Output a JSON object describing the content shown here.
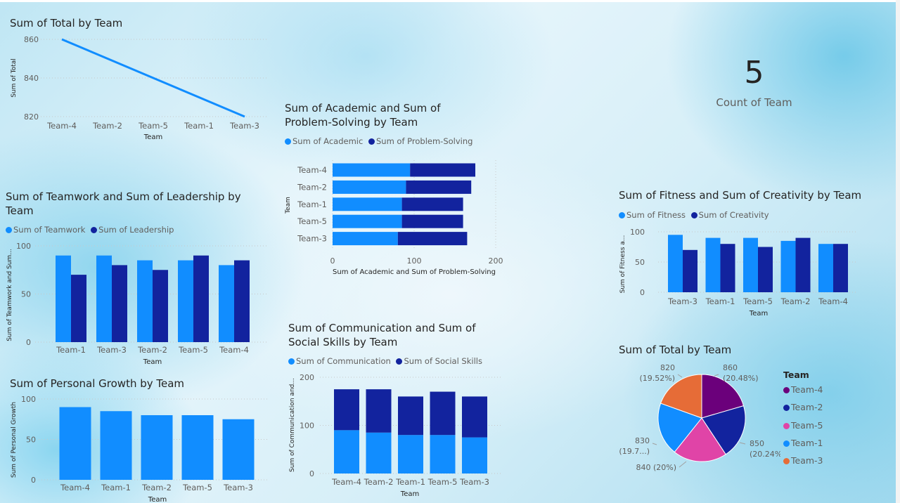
{
  "colors": {
    "light_blue": "#118DFF",
    "dark_blue": "#12239E",
    "pie": [
      "#6B007B",
      "#12239E",
      "#E044A7",
      "#118DFF",
      "#E66C37"
    ]
  },
  "kpi": {
    "value": "5",
    "label": "Count of Team"
  },
  "chart_data": [
    {
      "id": "total_line",
      "type": "line",
      "title": "Sum of Total by Team",
      "xlabel": "Team",
      "ylabel": "Sum of Total",
      "categories": [
        "Team-4",
        "Team-2",
        "Team-5",
        "Team-1",
        "Team-3"
      ],
      "values": [
        860,
        850,
        840,
        830,
        820
      ],
      "yticks": [
        "860",
        "840",
        "820"
      ],
      "ylim": [
        820,
        860
      ],
      "grid": true
    },
    {
      "id": "teamwork_leadership",
      "type": "bar",
      "title": "Sum of Teamwork and Sum of Leadership by Team",
      "xlabel": "Team",
      "ylabel": "Sum of Teamwork and Sum...",
      "categories": [
        "Team-1",
        "Team-3",
        "Team-2",
        "Team-5",
        "Team-4"
      ],
      "series": [
        {
          "name": "Sum of Teamwork",
          "values": [
            90,
            90,
            85,
            85,
            80
          ]
        },
        {
          "name": "Sum of Leadership",
          "values": [
            70,
            80,
            75,
            90,
            85
          ]
        }
      ],
      "yticks": [
        "100",
        "50",
        "0"
      ],
      "ylim": [
        0,
        100
      ],
      "legend": "top-left"
    },
    {
      "id": "personal_growth",
      "type": "bar",
      "title": "Sum of Personal Growth by Team",
      "xlabel": "Team",
      "ylabel": "Sum of Personal Growth",
      "categories": [
        "Team-4",
        "Team-1",
        "Team-2",
        "Team-5",
        "Team-3"
      ],
      "values": [
        90,
        85,
        80,
        80,
        75
      ],
      "yticks": [
        "100",
        "50",
        "0"
      ],
      "ylim": [
        0,
        100
      ]
    },
    {
      "id": "academic_problem",
      "type": "bar",
      "orientation": "horizontal",
      "stacked": true,
      "title": "Sum of Academic and Sum of Problem-Solving by Team",
      "xlabel": "Sum of Academic and Sum of Problem-Solving",
      "ylabel": "Team",
      "categories": [
        "Team-4",
        "Team-2",
        "Team-1",
        "Team-5",
        "Team-3"
      ],
      "series": [
        {
          "name": "Sum of Academic",
          "values": [
            95,
            90,
            85,
            85,
            80
          ]
        },
        {
          "name": "Sum of Problem-Solving",
          "values": [
            80,
            80,
            75,
            75,
            85
          ]
        }
      ],
      "xticks": [
        "0",
        "100",
        "200"
      ],
      "xlim": [
        0,
        200
      ],
      "legend": "top-left"
    },
    {
      "id": "communication_social",
      "type": "bar",
      "stacked": true,
      "title": "Sum of Communication and Sum of Social Skills by Team",
      "xlabel": "Team",
      "ylabel": "Sum of Communication and...",
      "categories": [
        "Team-4",
        "Team-2",
        "Team-1",
        "Team-5",
        "Team-3"
      ],
      "series": [
        {
          "name": "Sum of Communication",
          "values": [
            90,
            85,
            80,
            80,
            75
          ]
        },
        {
          "name": "Sum of Social Skills",
          "values": [
            85,
            90,
            80,
            90,
            85
          ]
        }
      ],
      "yticks": [
        "200",
        "100",
        "0"
      ],
      "ylim": [
        0,
        200
      ],
      "legend": "top-left"
    },
    {
      "id": "fitness_creativity",
      "type": "bar",
      "title": "Sum of Fitness and Sum of Creativity by Team",
      "xlabel": "Team",
      "ylabel": "Sum of Fitness a...",
      "categories": [
        "Team-3",
        "Team-1",
        "Team-5",
        "Team-2",
        "Team-4"
      ],
      "series": [
        {
          "name": "Sum of Fitness",
          "values": [
            95,
            90,
            90,
            85,
            80
          ]
        },
        {
          "name": "Sum of Creativity",
          "values": [
            70,
            80,
            75,
            90,
            80
          ]
        }
      ],
      "yticks": [
        "100",
        "50",
        "0"
      ],
      "ylim": [
        0,
        100
      ],
      "legend": "top-left"
    },
    {
      "id": "total_pie",
      "type": "pie",
      "title": "Sum of Total by Team",
      "legend_title": "Team",
      "categories": [
        "Team-4",
        "Team-2",
        "Team-5",
        "Team-1",
        "Team-3"
      ],
      "values": [
        860,
        850,
        840,
        830,
        820
      ],
      "labels": [
        {
          "value": "860",
          "pct": "(20.48%)"
        },
        {
          "value": "850",
          "pct": "(20.24%)"
        },
        {
          "value": "840 (20%)",
          "pct": ""
        },
        {
          "value": "830",
          "pct": "(19.7...)"
        },
        {
          "value": "820",
          "pct": "(19.52%)"
        }
      ],
      "legend": "right"
    }
  ]
}
